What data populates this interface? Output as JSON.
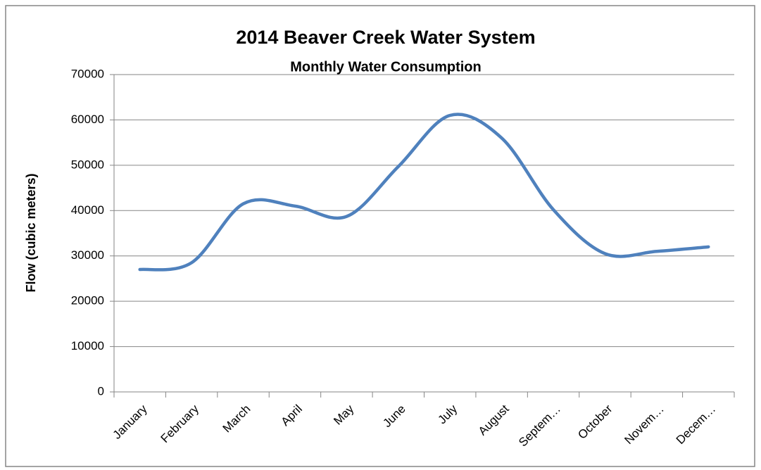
{
  "chart_data": {
    "type": "line",
    "title": "2014 Beaver Creek Water System",
    "subtitle": "Monthly Water Consumption",
    "y_label": "Flow (cubic meters)",
    "categories": [
      "January",
      "February",
      "March",
      "April",
      "May",
      "June",
      "July",
      "August",
      "Septem…",
      "October",
      "Novem…",
      "Decem…"
    ],
    "series": [
      {
        "name": "Flow",
        "color": "#4f81bd",
        "values": [
          27000,
          28500,
          41500,
          41000,
          38700,
          49700,
          61000,
          56000,
          40200,
          30500,
          31000,
          32000
        ]
      }
    ],
    "ylim": [
      0,
      70000
    ],
    "yticks": [
      0,
      10000,
      20000,
      30000,
      40000,
      50000,
      60000,
      70000
    ],
    "grid": true,
    "smooth": true
  }
}
